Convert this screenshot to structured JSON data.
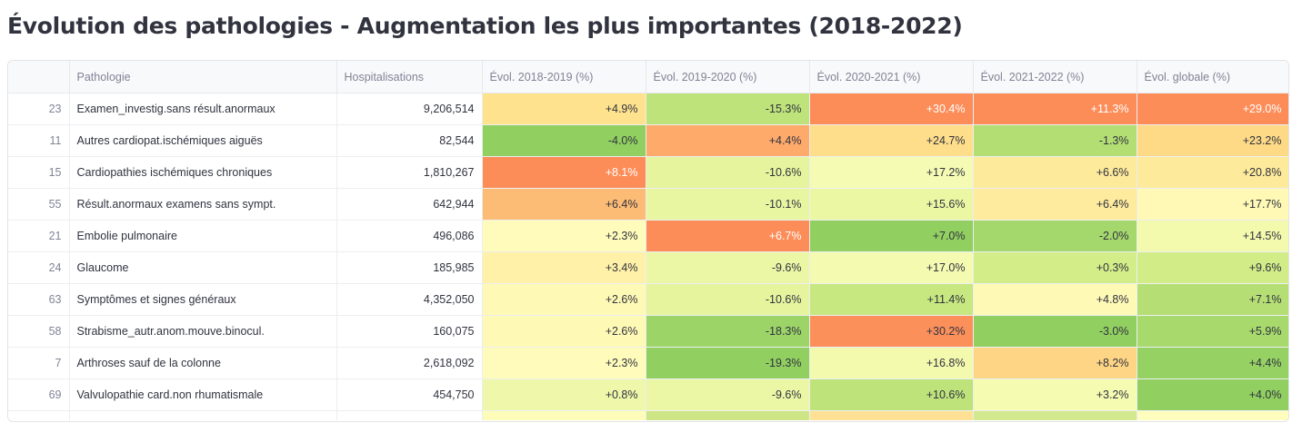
{
  "title": "Évolution des pathologies - Augmentation les plus importantes (2018-2022)",
  "table": {
    "columns": [
      "",
      "Pathologie",
      "Hospitalisations",
      "Évol. 2018-2019 (%)",
      "Évol. 2019-2020 (%)",
      "Évol. 2020-2021 (%)",
      "Évol. 2021-2022 (%)",
      "Évol. globale (%)"
    ],
    "rows": [
      {
        "idx": "23",
        "pathologie": "Examen_investig.sans résult.anormaux",
        "hosp": "9,206,514",
        "e1819": "+4.9%",
        "e1920": "-15.3%",
        "e2021": "+30.4%",
        "e2122": "+11.3%",
        "eglob": "+29.0%"
      },
      {
        "idx": "11",
        "pathologie": "Autres cardiopat.ischémiques aiguës",
        "hosp": "82,544",
        "e1819": "-4.0%",
        "e1920": "+4.4%",
        "e2021": "+24.7%",
        "e2122": "-1.3%",
        "eglob": "+23.2%"
      },
      {
        "idx": "15",
        "pathologie": "Cardiopathies ischémiques chroniques",
        "hosp": "1,810,267",
        "e1819": "+8.1%",
        "e1920": "-10.6%",
        "e2021": "+17.2%",
        "e2122": "+6.6%",
        "eglob": "+20.8%"
      },
      {
        "idx": "55",
        "pathologie": "Résult.anormaux examens sans sympt.",
        "hosp": "642,944",
        "e1819": "+6.4%",
        "e1920": "-10.1%",
        "e2021": "+15.6%",
        "e2122": "+6.4%",
        "eglob": "+17.7%"
      },
      {
        "idx": "21",
        "pathologie": "Embolie pulmonaire",
        "hosp": "496,086",
        "e1819": "+2.3%",
        "e1920": "+6.7%",
        "e2021": "+7.0%",
        "e2122": "-2.0%",
        "eglob": "+14.5%"
      },
      {
        "idx": "24",
        "pathologie": "Glaucome",
        "hosp": "185,985",
        "e1819": "+3.4%",
        "e1920": "-9.6%",
        "e2021": "+17.0%",
        "e2122": "+0.3%",
        "eglob": "+9.6%"
      },
      {
        "idx": "63",
        "pathologie": "Symptômes  et signes généraux",
        "hosp": "4,352,050",
        "e1819": "+2.6%",
        "e1920": "-10.6%",
        "e2021": "+11.4%",
        "e2122": "+4.8%",
        "eglob": "+7.1%"
      },
      {
        "idx": "58",
        "pathologie": "Strabisme_autr.anom.mouve.binocul.",
        "hosp": "160,075",
        "e1819": "+2.6%",
        "e1920": "-18.3%",
        "e2021": "+30.2%",
        "e2122": "-3.0%",
        "eglob": "+5.9%"
      },
      {
        "idx": "7",
        "pathologie": "Arthroses sauf de la colonne",
        "hosp": "2,618,092",
        "e1819": "+2.3%",
        "e1920": "-19.3%",
        "e2021": "+16.8%",
        "e2122": "+8.2%",
        "eglob": "+4.4%"
      },
      {
        "idx": "69",
        "pathologie": "Valvulopathie card.non rhumatismale",
        "hosp": "454,750",
        "e1819": "+0.8%",
        "e1920": "-9.6%",
        "e2021": "+10.6%",
        "e2122": "+3.2%",
        "eglob": "+4.0%"
      }
    ],
    "partial_row_colors": [
      "#fdfcb8",
      "#cde585",
      "#fee195",
      "#d2e98d",
      "#fffdbd"
    ],
    "colormap": [
      "#91cf60",
      "#d9ef8b",
      "#ffffbf",
      "#fee08b",
      "#fc8d59"
    ],
    "ranges": {
      "e1819": [
        -4.0,
        8.1
      ],
      "e1920": [
        -19.3,
        6.7
      ],
      "e2021": [
        7.0,
        30.4
      ],
      "e2122": [
        -3.0,
        11.3
      ],
      "eglob": [
        4.0,
        29.0
      ]
    }
  }
}
